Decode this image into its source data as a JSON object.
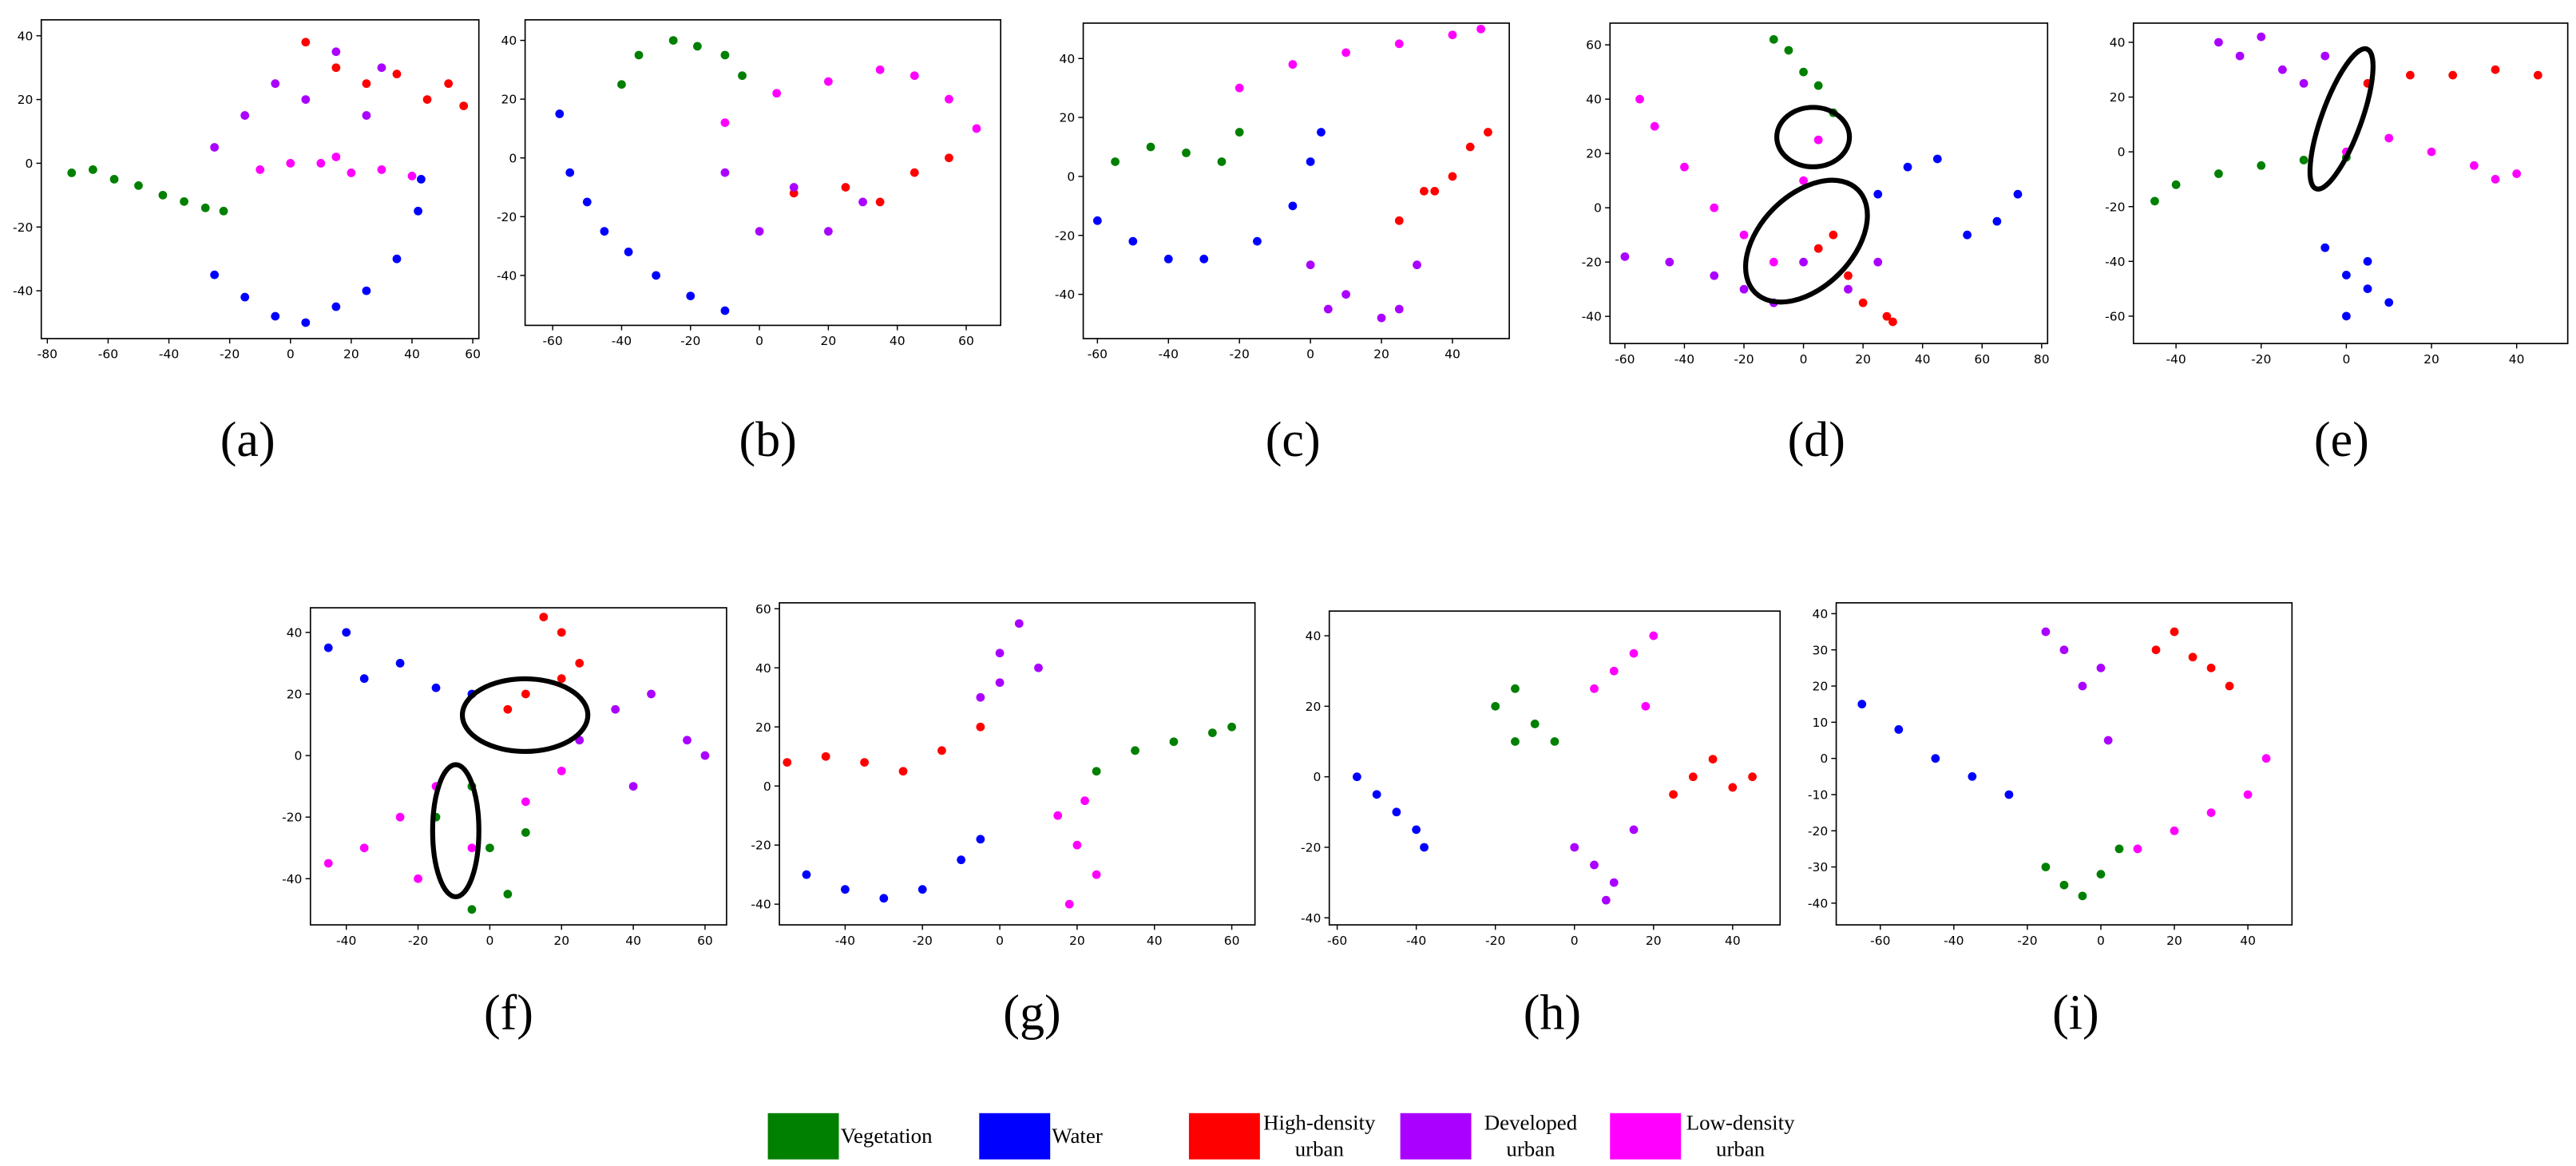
{
  "chart_data": [
    {
      "type": "scatter",
      "label": "(a)",
      "xlim": [
        -82,
        62
      ],
      "ylim": [
        -55,
        45
      ],
      "xticks": [
        -80,
        -60,
        -40,
        -20,
        0,
        20,
        40,
        60
      ],
      "yticks": [
        -40,
        -20,
        0,
        20,
        40
      ],
      "series": [
        {
          "color": "#008000",
          "x": [
            -72,
            -65,
            -58,
            -50,
            -42,
            -35,
            -28,
            -22
          ],
          "y": [
            -3,
            -2,
            -5,
            -7,
            -10,
            -12,
            -14,
            -15
          ]
        },
        {
          "color": "#0000ff",
          "x": [
            -25,
            -15,
            -5,
            5,
            15,
            25,
            35,
            42,
            43
          ],
          "y": [
            -35,
            -42,
            -48,
            -50,
            -45,
            -40,
            -30,
            -15,
            -5
          ]
        },
        {
          "color": "#ff0000",
          "x": [
            5,
            15,
            25,
            35,
            45,
            52,
            57
          ],
          "y": [
            38,
            30,
            25,
            28,
            20,
            25,
            18
          ]
        },
        {
          "color": "#aa00ff",
          "x": [
            -25,
            -15,
            -5,
            5,
            15,
            25,
            30
          ],
          "y": [
            5,
            15,
            25,
            20,
            35,
            15,
            30
          ]
        },
        {
          "color": "#ff00ff",
          "x": [
            -10,
            0,
            10,
            20,
            30,
            15,
            40
          ],
          "y": [
            -2,
            0,
            0,
            -3,
            -2,
            2,
            -4
          ]
        }
      ]
    },
    {
      "type": "scatter",
      "label": "(b)",
      "xlim": [
        -68,
        70
      ],
      "ylim": [
        -57,
        47
      ],
      "xticks": [
        -60,
        -40,
        -20,
        0,
        20,
        40,
        60
      ],
      "yticks": [
        -40,
        -20,
        0,
        20,
        40
      ],
      "series": [
        {
          "color": "#008000",
          "x": [
            -40,
            -35,
            -25,
            -18,
            -10,
            -5
          ],
          "y": [
            25,
            35,
            40,
            38,
            35,
            28
          ]
        },
        {
          "color": "#0000ff",
          "x": [
            -58,
            -55,
            -50,
            -45,
            -38,
            -30,
            -20,
            -10
          ],
          "y": [
            15,
            -5,
            -15,
            -25,
            -32,
            -40,
            -47,
            -52
          ]
        },
        {
          "color": "#ff00ff",
          "x": [
            -10,
            5,
            20,
            35,
            45,
            55,
            63
          ],
          "y": [
            12,
            22,
            26,
            30,
            28,
            20,
            10
          ]
        },
        {
          "color": "#ff0000",
          "x": [
            10,
            25,
            35,
            45,
            55
          ],
          "y": [
            -12,
            -10,
            -15,
            -5,
            0
          ]
        },
        {
          "color": "#aa00ff",
          "x": [
            -10,
            0,
            10,
            20,
            30
          ],
          "y": [
            -5,
            -25,
            -10,
            -25,
            -15
          ]
        }
      ]
    },
    {
      "type": "scatter",
      "label": "(c)",
      "xlim": [
        -64,
        56
      ],
      "ylim": [
        -55,
        52
      ],
      "xticks": [
        -60,
        -40,
        -20,
        0,
        20,
        40
      ],
      "yticks": [
        -40,
        -20,
        0,
        20,
        40
      ],
      "series": [
        {
          "color": "#ff00ff",
          "x": [
            -20,
            -5,
            10,
            25,
            40,
            48
          ],
          "y": [
            30,
            38,
            42,
            45,
            48,
            50
          ]
        },
        {
          "color": "#008000",
          "x": [
            -55,
            -45,
            -35,
            -25,
            -20
          ],
          "y": [
            5,
            10,
            8,
            5,
            15
          ]
        },
        {
          "color": "#0000ff",
          "x": [
            -60,
            -50,
            -40,
            -30,
            -15,
            -5,
            0,
            3
          ],
          "y": [
            -15,
            -22,
            -28,
            -28,
            -22,
            -10,
            5,
            15
          ]
        },
        {
          "color": "#ff0000",
          "x": [
            25,
            32,
            40,
            45,
            50,
            35
          ],
          "y": [
            -15,
            -5,
            0,
            10,
            15,
            -5
          ]
        },
        {
          "color": "#aa00ff",
          "x": [
            0,
            10,
            20,
            25,
            30,
            5
          ],
          "y": [
            -30,
            -40,
            -48,
            -45,
            -30,
            -45
          ]
        }
      ]
    },
    {
      "type": "scatter",
      "label": "(d)",
      "xlim": [
        -65,
        82
      ],
      "ylim": [
        -50,
        68
      ],
      "xticks": [
        -60,
        -40,
        -20,
        0,
        20,
        40,
        60,
        80
      ],
      "yticks": [
        -40,
        -20,
        0,
        20,
        40,
        60
      ],
      "series": [
        {
          "color": "#008000",
          "x": [
            -10,
            -5,
            0,
            5,
            10
          ],
          "y": [
            62,
            58,
            50,
            45,
            35
          ]
        },
        {
          "color": "#0000ff",
          "x": [
            25,
            35,
            45,
            55,
            65,
            72
          ],
          "y": [
            5,
            15,
            18,
            -10,
            -5,
            5
          ]
        },
        {
          "color": "#ff00ff",
          "x": [
            -55,
            -50,
            -40,
            -30,
            -20,
            -10,
            0,
            5
          ],
          "y": [
            40,
            30,
            15,
            0,
            -10,
            -20,
            10,
            25
          ]
        },
        {
          "color": "#aa00ff",
          "x": [
            -60,
            -45,
            -30,
            -20,
            -10,
            0,
            15,
            25
          ],
          "y": [
            -18,
            -20,
            -25,
            -30,
            -35,
            -20,
            -30,
            -20
          ]
        },
        {
          "color": "#ff0000",
          "x": [
            5,
            10,
            15,
            20,
            28,
            30
          ],
          "y": [
            -15,
            -10,
            -25,
            -35,
            -40,
            -42
          ]
        }
      ]
    },
    {
      "type": "scatter",
      "label": "(e)",
      "xlim": [
        -50,
        52
      ],
      "ylim": [
        -70,
        47
      ],
      "xticks": [
        -40,
        -20,
        0,
        20,
        40
      ],
      "yticks": [
        -60,
        -40,
        -20,
        0,
        20,
        40
      ],
      "series": [
        {
          "color": "#aa00ff",
          "x": [
            -30,
            -25,
            -20,
            -15,
            -10,
            -5
          ],
          "y": [
            40,
            35,
            42,
            30,
            25,
            35
          ]
        },
        {
          "color": "#ff0000",
          "x": [
            5,
            15,
            25,
            35,
            45
          ],
          "y": [
            25,
            28,
            28,
            30,
            28
          ]
        },
        {
          "color": "#008000",
          "x": [
            -45,
            -40,
            -30,
            -20,
            -10,
            0
          ],
          "y": [
            -18,
            -12,
            -8,
            -5,
            -3,
            -2
          ]
        },
        {
          "color": "#ff00ff",
          "x": [
            0,
            10,
            20,
            30,
            35,
            40
          ],
          "y": [
            0,
            5,
            0,
            -5,
            -10,
            -8
          ]
        },
        {
          "color": "#0000ff",
          "x": [
            -5,
            0,
            5,
            10,
            0,
            5
          ],
          "y": [
            -35,
            -45,
            -50,
            -55,
            -60,
            -40
          ]
        }
      ]
    },
    {
      "type": "scatter",
      "label": "(f)",
      "xlim": [
        -50,
        66
      ],
      "ylim": [
        -55,
        48
      ],
      "xticks": [
        -40,
        -20,
        0,
        20,
        40,
        60
      ],
      "yticks": [
        -40,
        -20,
        0,
        20,
        40
      ],
      "series": [
        {
          "color": "#0000ff",
          "x": [
            -45,
            -40,
            -35,
            -25,
            -15,
            -5
          ],
          "y": [
            35,
            40,
            25,
            30,
            22,
            20
          ]
        },
        {
          "color": "#ff0000",
          "x": [
            15,
            20,
            25,
            10,
            5,
            20
          ],
          "y": [
            45,
            40,
            30,
            20,
            15,
            25
          ]
        },
        {
          "color": "#aa00ff",
          "x": [
            25,
            35,
            45,
            55,
            60,
            40
          ],
          "y": [
            5,
            15,
            20,
            5,
            0,
            -10
          ]
        },
        {
          "color": "#ff00ff",
          "x": [
            -45,
            -35,
            -25,
            -20,
            -15,
            -5,
            10,
            20
          ],
          "y": [
            -35,
            -30,
            -20,
            -40,
            -10,
            -30,
            -15,
            -5
          ]
        },
        {
          "color": "#008000",
          "x": [
            -15,
            -5,
            0,
            5,
            10,
            -5
          ],
          "y": [
            -20,
            -10,
            -30,
            -45,
            -25,
            -50
          ]
        }
      ]
    },
    {
      "type": "scatter",
      "label": "(g)",
      "xlim": [
        -57,
        66
      ],
      "ylim": [
        -47,
        62
      ],
      "xticks": [
        -40,
        -20,
        0,
        20,
        40,
        60
      ],
      "yticks": [
        -40,
        -20,
        0,
        20,
        40,
        60
      ],
      "series": [
        {
          "color": "#ff0000",
          "x": [
            -55,
            -45,
            -35,
            -25,
            -15,
            -5
          ],
          "y": [
            8,
            10,
            8,
            5,
            12,
            20
          ]
        },
        {
          "color": "#aa00ff",
          "x": [
            -5,
            0,
            5,
            10,
            0
          ],
          "y": [
            30,
            45,
            55,
            40,
            35
          ]
        },
        {
          "color": "#0000ff",
          "x": [
            -50,
            -40,
            -30,
            -20,
            -10,
            -5
          ],
          "y": [
            -30,
            -35,
            -38,
            -35,
            -25,
            -18
          ]
        },
        {
          "color": "#008000",
          "x": [
            25,
            35,
            45,
            55,
            60
          ],
          "y": [
            5,
            12,
            15,
            18,
            20
          ]
        },
        {
          "color": "#ff00ff",
          "x": [
            15,
            20,
            25,
            18,
            22
          ],
          "y": [
            -10,
            -20,
            -30,
            -40,
            -5
          ]
        }
      ]
    },
    {
      "type": "scatter",
      "label": "(h)",
      "xlim": [
        -62,
        52
      ],
      "ylim": [
        -42,
        47
      ],
      "xticks": [
        -60,
        -40,
        -20,
        0,
        20,
        40
      ],
      "yticks": [
        -40,
        -20,
        0,
        20,
        40
      ],
      "series": [
        {
          "color": "#008000",
          "x": [
            -20,
            -15,
            -10,
            -5,
            -15
          ],
          "y": [
            20,
            25,
            15,
            10,
            10
          ]
        },
        {
          "color": "#ff00ff",
          "x": [
            5,
            10,
            15,
            20,
            18
          ],
          "y": [
            25,
            30,
            35,
            40,
            20
          ]
        },
        {
          "color": "#0000ff",
          "x": [
            -55,
            -50,
            -45,
            -40,
            -38
          ],
          "y": [
            0,
            -5,
            -10,
            -15,
            -20
          ]
        },
        {
          "color": "#ff0000",
          "x": [
            25,
            30,
            35,
            40,
            45
          ],
          "y": [
            -5,
            0,
            5,
            -3,
            0
          ]
        },
        {
          "color": "#aa00ff",
          "x": [
            0,
            5,
            10,
            15,
            8
          ],
          "y": [
            -20,
            -25,
            -30,
            -15,
            -35
          ]
        }
      ]
    },
    {
      "type": "scatter",
      "label": "(i)",
      "xlim": [
        -72,
        52
      ],
      "ylim": [
        -46,
        43
      ],
      "xticks": [
        -60,
        -40,
        -20,
        0,
        20,
        40
      ],
      "yticks": [
        -40,
        -30,
        -20,
        -10,
        0,
        10,
        20,
        30,
        40
      ],
      "series": [
        {
          "color": "#0000ff",
          "x": [
            -65,
            -55,
            -45,
            -35,
            -25
          ],
          "y": [
            15,
            8,
            0,
            -5,
            -10
          ]
        },
        {
          "color": "#aa00ff",
          "x": [
            -15,
            -10,
            -5,
            0,
            2
          ],
          "y": [
            35,
            30,
            20,
            25,
            5
          ]
        },
        {
          "color": "#ff0000",
          "x": [
            15,
            20,
            25,
            30,
            35
          ],
          "y": [
            30,
            35,
            28,
            25,
            20
          ]
        },
        {
          "color": "#008000",
          "x": [
            -15,
            -10,
            -5,
            0,
            5
          ],
          "y": [
            -30,
            -35,
            -38,
            -32,
            -25
          ]
        },
        {
          "color": "#ff00ff",
          "x": [
            10,
            20,
            30,
            40,
            45
          ],
          "y": [
            -25,
            -20,
            -15,
            -10,
            0
          ]
        }
      ]
    }
  ],
  "legend": [
    {
      "color": "#008000",
      "lines": [
        "Vegetation"
      ]
    },
    {
      "color": "#0000ff",
      "lines": [
        "Water"
      ]
    },
    {
      "color": "#ff0000",
      "lines": [
        "High-density",
        "urban"
      ]
    },
    {
      "color": "#aa00ff",
      "lines": [
        "Developed",
        "urban"
      ]
    },
    {
      "color": "#ff00ff",
      "lines": [
        "Low-density",
        "urban"
      ]
    }
  ]
}
